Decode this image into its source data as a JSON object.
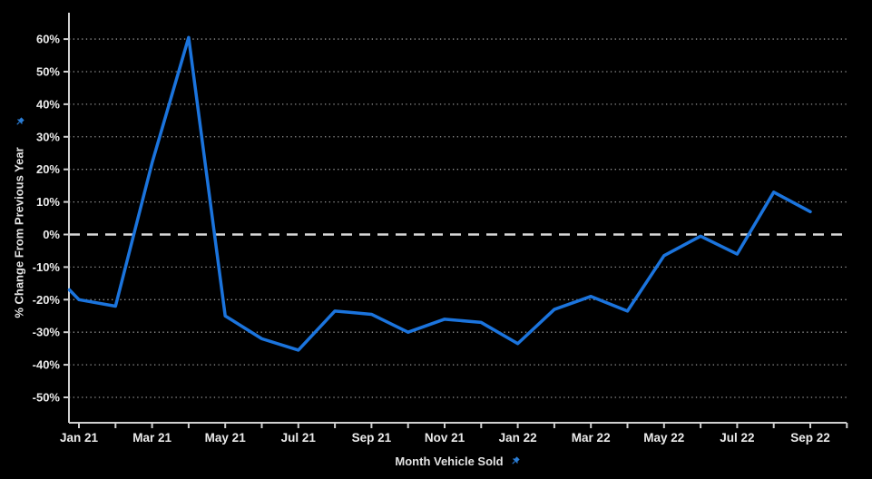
{
  "chart_data": {
    "type": "line",
    "title": "",
    "xlabel": "Month Vehicle Sold",
    "ylabel": "% Change From Previous Year",
    "categories": [
      "Jan 21",
      "Feb 21",
      "Mar 21",
      "Apr 21",
      "May 21",
      "Jun 21",
      "Jul 21",
      "Aug 21",
      "Sep 21",
      "Oct 21",
      "Nov 21",
      "Dec 21",
      "Jan 22",
      "Feb 22",
      "Mar 22",
      "Apr 22",
      "May 22",
      "Jun 22",
      "Jul 22",
      "Aug 22",
      "Sep 22"
    ],
    "series": [
      {
        "name": "% Change From Previous Year",
        "values": [
          -20,
          -22,
          22,
          60.5,
          -25,
          -32,
          -35.5,
          -23.5,
          -24.5,
          -30,
          -26,
          -27,
          -33.5,
          -23,
          -19,
          -23.5,
          -6.5,
          -0.5,
          -6,
          13,
          7
        ]
      }
    ],
    "clipped_lead": {
      "note": "line is clipped at left pane edge (data continues before Jan 21)",
      "value_at_left_edge": -17
    },
    "y_ticks": [
      60,
      50,
      40,
      30,
      20,
      10,
      0,
      -10,
      -20,
      -30,
      -40,
      -50
    ],
    "y_tick_labels": [
      "60%",
      "50%",
      "40%",
      "30%",
      "20%",
      "10%",
      "0%",
      "-10%",
      "-20%",
      "-30%",
      "-40%",
      "-50%"
    ],
    "x_tick_labels": [
      "Jan 21",
      "Mar 21",
      "May 21",
      "Jul 21",
      "Sep 21",
      "Nov 21",
      "Jan 22",
      "Mar 22",
      "May 22",
      "Jul 22",
      "Sep 22"
    ],
    "x_label_every_n_months": 2,
    "ylim": [
      -57.8,
      68.1
    ],
    "grid": "dotted horizontal gridlines at each 10% tick",
    "zero_line": "dashed",
    "legend": "none"
  },
  "icons": {
    "y_axis_pin": "pin-icon",
    "x_axis_pin": "pin-icon"
  },
  "colors": {
    "background": "#000000",
    "line": "#1b74dd",
    "grid": "#969696",
    "zero_line": "#d8d8d8",
    "axis": "#d0d0d0",
    "tick_label": "#ebebeb",
    "axis_title": "#e4e4e4",
    "pin": "#2a7cd4"
  }
}
